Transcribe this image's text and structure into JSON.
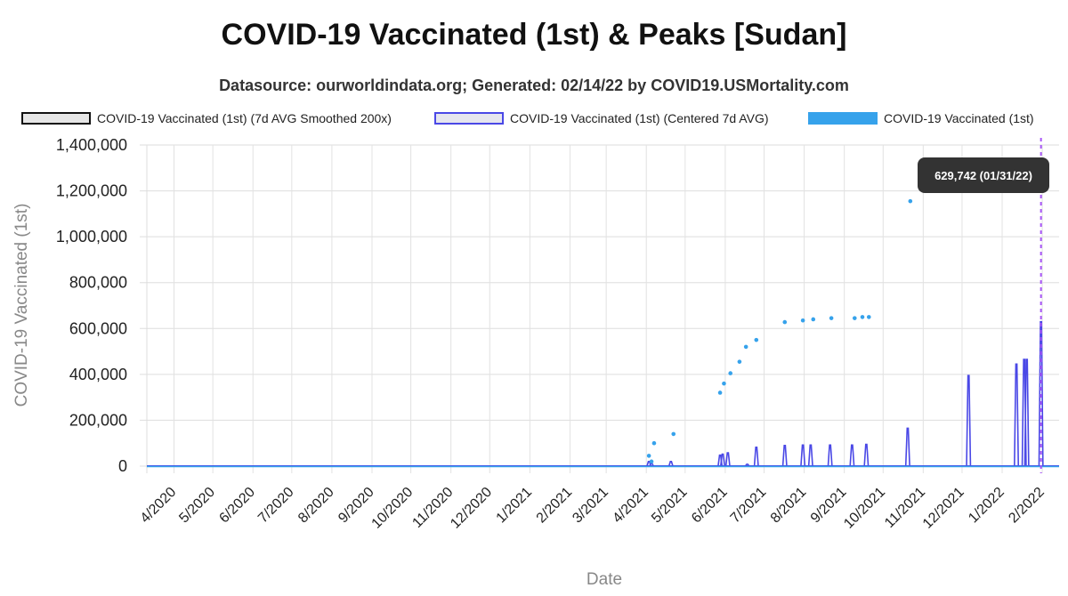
{
  "title": "COVID-19 Vaccinated (1st) & Peaks [Sudan]",
  "subtitle": "Datasource: ourworldindata.org; Generated: 02/14/22 by COVID19.USMortality.com",
  "legend": [
    {
      "label": "COVID-19 Vaccinated (1st) (7d AVG Smoothed 200x)",
      "color": "#111111"
    },
    {
      "label": "COVID-19 Vaccinated (1st) (Centered 7d AVG)",
      "color": "#4a48e6"
    },
    {
      "label": "COVID-19 Vaccinated (1st)",
      "color": "#36a2eb"
    }
  ],
  "tooltip": {
    "text": "629,742 (01/31/22)",
    "date": "2022-01-31",
    "value": 629742
  },
  "chart_data": {
    "type": "line",
    "title": "COVID-19 Vaccinated (1st) & Peaks [Sudan]",
    "xlabel": "Date",
    "ylabel": "COVID-19 Vaccinated (1st)",
    "ylim": [
      0,
      1400000
    ],
    "yticks": [
      0,
      200000,
      400000,
      600000,
      800000,
      1000000,
      1200000,
      1400000
    ],
    "ytick_labels": [
      "0",
      "200,000",
      "400,000",
      "600,000",
      "800,000",
      "1,000,000",
      "1,200,000",
      "1,400,000"
    ],
    "xlim": [
      "2020-03-11",
      "2022-02-14"
    ],
    "xticks": [
      {
        "date": "2020-04-01",
        "label": "4/2020"
      },
      {
        "date": "2020-05-01",
        "label": "5/2020"
      },
      {
        "date": "2020-06-01",
        "label": "6/2020"
      },
      {
        "date": "2020-07-01",
        "label": "7/2020"
      },
      {
        "date": "2020-08-01",
        "label": "8/2020"
      },
      {
        "date": "2020-09-01",
        "label": "9/2020"
      },
      {
        "date": "2020-10-01",
        "label": "10/2020"
      },
      {
        "date": "2020-11-01",
        "label": "11/2020"
      },
      {
        "date": "2020-12-01",
        "label": "12/2020"
      },
      {
        "date": "2021-01-01",
        "label": "1/2021"
      },
      {
        "date": "2021-02-01",
        "label": "2/2021"
      },
      {
        "date": "2021-03-01",
        "label": "3/2021"
      },
      {
        "date": "2021-04-01",
        "label": "4/2021"
      },
      {
        "date": "2021-05-01",
        "label": "5/2021"
      },
      {
        "date": "2021-06-01",
        "label": "6/2021"
      },
      {
        "date": "2021-07-01",
        "label": "7/2021"
      },
      {
        "date": "2021-08-01",
        "label": "8/2021"
      },
      {
        "date": "2021-09-01",
        "label": "9/2021"
      },
      {
        "date": "2021-10-01",
        "label": "10/2021"
      },
      {
        "date": "2021-11-01",
        "label": "11/2021"
      },
      {
        "date": "2021-12-01",
        "label": "12/2021"
      },
      {
        "date": "2022-01-01",
        "label": "1/2022"
      },
      {
        "date": "2022-02-01",
        "label": "2/2022"
      }
    ],
    "grid": true,
    "legend_position": "top",
    "series": [
      {
        "name": "COVID-19 Vaccinated (1st) (7d AVG Smoothed 200x)",
        "color": "#111111",
        "style": "line",
        "points": [
          [
            "2020-03-11",
            0
          ],
          [
            "2022-02-14",
            0
          ]
        ]
      },
      {
        "name": "COVID-19 Vaccinated (1st) (Centered 7d AVG)",
        "color": "#4a48e6",
        "style": "spikes",
        "spikes": [
          {
            "date": "2021-04-03",
            "value": 20000
          },
          {
            "date": "2021-04-05",
            "value": 12000
          },
          {
            "date": "2021-04-20",
            "value": 20000
          },
          {
            "date": "2021-05-28",
            "value": 48000
          },
          {
            "date": "2021-05-30",
            "value": 52000
          },
          {
            "date": "2021-06-03",
            "value": 58000
          },
          {
            "date": "2021-06-18",
            "value": 8000
          },
          {
            "date": "2021-06-25",
            "value": 82000
          },
          {
            "date": "2021-07-17",
            "value": 90000
          },
          {
            "date": "2021-07-31",
            "value": 92000
          },
          {
            "date": "2021-08-06",
            "value": 92000
          },
          {
            "date": "2021-08-21",
            "value": 92000
          },
          {
            "date": "2021-09-07",
            "value": 92000
          },
          {
            "date": "2021-09-18",
            "value": 95000
          },
          {
            "date": "2021-10-20",
            "value": 165000
          },
          {
            "date": "2021-12-06",
            "value": 395000
          },
          {
            "date": "2022-01-12",
            "value": 445000
          },
          {
            "date": "2022-01-18",
            "value": 465000
          },
          {
            "date": "2022-01-20",
            "value": 465000
          },
          {
            "date": "2022-01-31",
            "value": 629742
          }
        ]
      },
      {
        "name": "COVID-19 Vaccinated (1st)",
        "color": "#36a2eb",
        "style": "points",
        "points": [
          [
            "2021-04-03",
            45000
          ],
          [
            "2021-04-05",
            20000
          ],
          [
            "2021-04-07",
            100000
          ],
          [
            "2021-04-22",
            140000
          ],
          [
            "2021-05-28",
            320000
          ],
          [
            "2021-05-31",
            360000
          ],
          [
            "2021-06-05",
            405000
          ],
          [
            "2021-06-12",
            455000
          ],
          [
            "2021-06-17",
            520000
          ],
          [
            "2021-06-25",
            550000
          ],
          [
            "2021-07-17",
            628000
          ],
          [
            "2021-07-31",
            635000
          ],
          [
            "2021-08-08",
            640000
          ],
          [
            "2021-08-22",
            645000
          ],
          [
            "2021-09-09",
            645000
          ],
          [
            "2021-09-15",
            650000
          ],
          [
            "2021-09-20",
            650000
          ],
          [
            "2021-10-22",
            1155000
          ]
        ]
      }
    ],
    "annotation": {
      "type": "vertical-line",
      "date": "2022-01-31",
      "color": "#a855f7"
    }
  }
}
